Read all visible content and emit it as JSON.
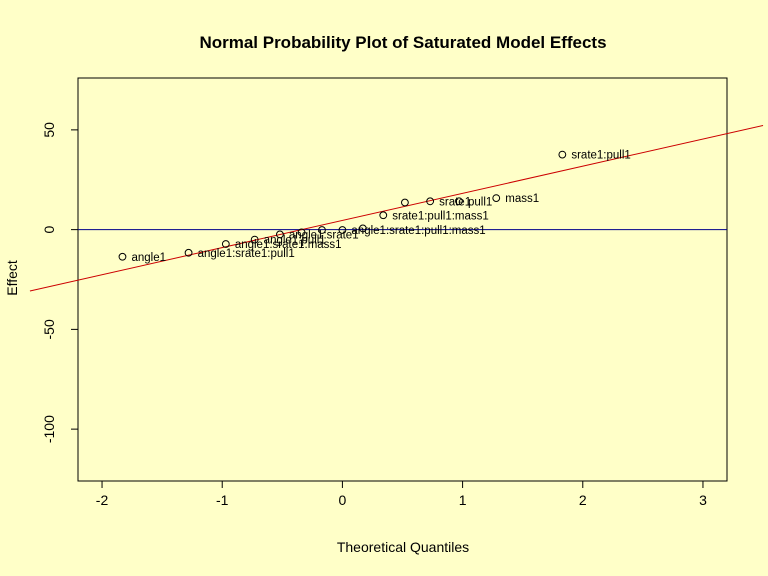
{
  "chart_data": {
    "type": "scatter",
    "title": "Normal Probability Plot of Saturated Model Effects",
    "xlabel": "Theoretical Quantiles",
    "ylabel": "Effect",
    "xlim": [
      -2.2,
      3.2
    ],
    "ylim": [
      -126,
      76
    ],
    "x_ticks": [
      -2,
      -1,
      0,
      1,
      2,
      3
    ],
    "y_ticks": [
      -100,
      -50,
      0,
      50
    ],
    "grid": false,
    "background": "#ffffc8",
    "colors": {
      "points": "#000000",
      "fit_line": "#cc0000",
      "zero_line": "#00008b"
    },
    "zero_line": 0,
    "fit_line": {
      "intercept": 4.6,
      "slope": 13.6
    },
    "points": [
      {
        "label": "angle1",
        "x": -1.83,
        "y": -13.6
      },
      {
        "label": "angle1:srate1:pull1",
        "x": -1.28,
        "y": -11.6
      },
      {
        "label": "angle1:srate1:mass1",
        "x": -0.97,
        "y": -7.2
      },
      {
        "label": "angle1:pull1",
        "x": -0.73,
        "y": -5.0
      },
      {
        "label": "angle1:srate1",
        "x": -0.52,
        "y": -2.4
      },
      {
        "label": "",
        "x": -0.34,
        "y": -1.4
      },
      {
        "label": "",
        "x": -0.17,
        "y": -0.2
      },
      {
        "label": "angle1:srate1:pull1:mass1",
        "x": 0.0,
        "y": -0.2
      },
      {
        "label": "",
        "x": 0.17,
        "y": 0.6
      },
      {
        "label": "srate1:pull1:mass1",
        "x": 0.34,
        "y": 7.2
      },
      {
        "label": "",
        "x": 0.52,
        "y": 13.6
      },
      {
        "label": "srate1",
        "x": 0.73,
        "y": 14.2
      },
      {
        "label": "pull1",
        "x": 0.97,
        "y": 14.2
      },
      {
        "label": "mass1",
        "x": 1.28,
        "y": 15.8
      },
      {
        "label": "srate1:pull1",
        "x": 1.83,
        "y": 37.6
      }
    ]
  }
}
